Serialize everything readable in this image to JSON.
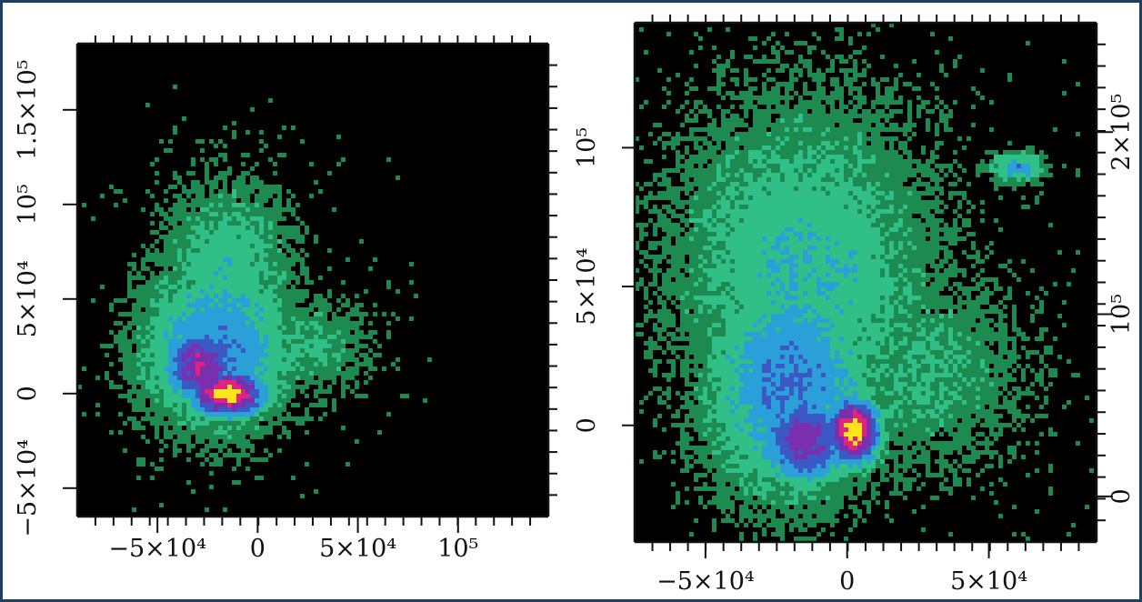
{
  "chart_data": [
    {
      "type": "heatmap",
      "title": "",
      "xlabel": "",
      "ylabel": "",
      "xlim": [
        -90000,
        145000
      ],
      "ylim": [
        -65000,
        185000
      ],
      "x_ticks": [
        -50000,
        0,
        50000,
        100000
      ],
      "x_tick_labels": [
        "−5×10⁴",
        "0",
        "5×10⁴",
        "10⁵"
      ],
      "y_ticks": [
        -50000,
        0,
        50000,
        100000,
        150000
      ],
      "y_tick_labels": [
        "−5×10⁴",
        "0",
        "5×10⁴",
        "10⁵",
        "1.5×10⁵"
      ],
      "colormap": [
        "#000000",
        "#1d8a4f",
        "#2fbf87",
        "#2b9fd8",
        "#3b58c4",
        "#7a2fae",
        "#e0237f",
        "#ffe51c"
      ],
      "density_blobs": [
        {
          "x": -15000,
          "y": 0,
          "sx": 14000,
          "sy": 9000,
          "level": 7
        },
        {
          "x": -28000,
          "y": 15000,
          "sx": 14000,
          "sy": 16000,
          "level": 5.5
        },
        {
          "x": -20000,
          "y": 25000,
          "sx": 28000,
          "sy": 32000,
          "level": 3.5
        },
        {
          "x": -15000,
          "y": 65000,
          "sx": 25000,
          "sy": 35000,
          "level": 2.2
        },
        {
          "x": 25000,
          "y": 25000,
          "sx": 25000,
          "sy": 22000,
          "level": 1.6
        }
      ]
    },
    {
      "type": "heatmap",
      "title": "",
      "xlabel": "",
      "ylabel": "",
      "xlim": [
        -75000,
        88000
      ],
      "ylim": [
        -42000,
        145000
      ],
      "x_ticks": [
        -50000,
        0,
        50000
      ],
      "x_tick_labels": [
        "−5×10⁴",
        "0",
        "5×10⁴"
      ],
      "y_ticks": [
        0,
        50000,
        100000
      ],
      "y_tick_labels": [
        "0",
        "5×10⁴",
        "10⁵"
      ],
      "y2_ticks": [
        0,
        100000,
        200000
      ],
      "y2_tick_labels": [
        "0",
        "10⁵",
        "2×10⁵"
      ],
      "colormap": [
        "#000000",
        "#1d8a4f",
        "#2fbf87",
        "#2b9fd8",
        "#3b58c4",
        "#7a2fae",
        "#e0237f",
        "#ffe51c"
      ],
      "density_blobs": [
        {
          "x": 2000,
          "y": -2000,
          "sx": 7000,
          "sy": 9000,
          "level": 7
        },
        {
          "x": -15000,
          "y": -5000,
          "sx": 12000,
          "sy": 12000,
          "level": 5.2
        },
        {
          "x": -20000,
          "y": 15000,
          "sx": 22000,
          "sy": 30000,
          "level": 3.6
        },
        {
          "x": -15000,
          "y": 55000,
          "sx": 35000,
          "sy": 45000,
          "level": 2.4
        },
        {
          "x": 25000,
          "y": 20000,
          "sx": 30000,
          "sy": 28000,
          "level": 1.6
        },
        {
          "x": 60000,
          "y": 93000,
          "sx": 7000,
          "sy": 4000,
          "level": 3.2
        }
      ]
    }
  ]
}
